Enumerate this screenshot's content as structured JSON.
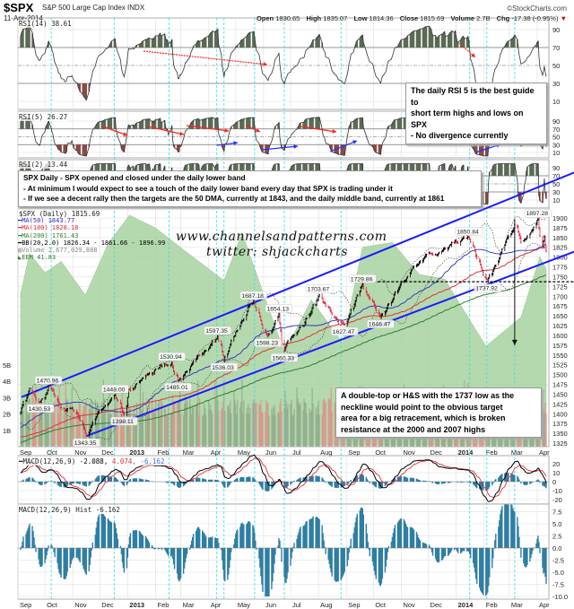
{
  "header": {
    "symbol": "$SPX",
    "name": "S&P 500 Large Cap Index",
    "exchange": "INDX",
    "date": "11-Apr-2014",
    "copyright": "©StockCharts.com",
    "open_label": "Open",
    "open": "1830.65",
    "high_label": "High",
    "high": "1835.07",
    "low_label": "Low",
    "low": "1814.36",
    "close_label": "Close",
    "close": "1815.69",
    "volume_label": "Volume",
    "volume": "2.7B",
    "chg_label": "Chg",
    "chg": "-17.38 (-0.95%)",
    "chg_icon": "down-triangle-icon"
  },
  "panels": {
    "rsi14_label": "RSI(14) 38.61",
    "rsi5_label": "RSI(5) 26.27",
    "rsi2_label": "RSI(2) 13.44",
    "price_label": "$SPX (Daily) 1815.69",
    "legend": [
      {
        "text": "MA(50) 1843.77",
        "color": "#2b2bb8"
      },
      {
        "text": "MA(100) 1828.18",
        "color": "#e0303a"
      },
      {
        "text": "MA(200) 1761.43",
        "color": "#2e7d32"
      },
      {
        "text": "BB(20,2.0) 1826.34 - 1861.66 - 1896.99",
        "color": "#000000"
      },
      {
        "text": "Volume 2,677,029,888",
        "color": "#888888"
      },
      {
        "text": "EEM 41.83",
        "color": "#2e7d32"
      }
    ],
    "macd_label": "MACD(12,26,9)",
    "macd_values": {
      "macd": "-2.088,",
      "signal": "4.074,",
      "hist": "-6.162"
    },
    "hist_label": "MACD(12,26,9) Hist -6.162"
  },
  "annotations": {
    "rsi_note": [
      "The daily RSI 5 is the best guide to",
      "short term highs and lows on SPX",
      "- No divergence currently"
    ],
    "spx_note": [
      "SPX Daily - SPX opened and closed under the daily lower band",
      "- At minimum I would expect to see a touch of the daily lower band every day that SPX is trading under it",
      "- If we see a decent rally then the targets are the 50 DMA, currently at 1843, and the daily middle band, currently at 1861"
    ],
    "pattern_note": [
      "A double-top or H&S with the 1737 low as the",
      "neckline would point to the obvious target",
      "area for a big retracement, which is broken",
      "resistance at the 2000 and 2007 highs"
    ],
    "watermark": [
      "www.channelsandpatterns.com",
      "twitter: shjackcharts"
    ]
  },
  "colors": {
    "up_candle": "#000000",
    "down_candle": "#e0203a",
    "ma50": "#2b2bb8",
    "ma100": "#e0303a",
    "ma200": "#2e7d32",
    "channel": "#1a1aff",
    "eem_fill": "#a9d3a0",
    "vol_up": "#8fa98a",
    "vol_down": "#d9928a",
    "hist": "#2f7ea3",
    "marker_line": "#33dddd",
    "rsi_high_fill": "#5a6a55",
    "rsi_low_fill": "#8a4a44"
  },
  "chart_data": {
    "type": "candlestick",
    "x_ticks": [
      "Sep",
      "Oct",
      "Nov",
      "Dec",
      "2013",
      "Feb",
      "Mar",
      "Apr",
      "May",
      "Jun",
      "Jul",
      "Aug",
      "Sep",
      "Oct",
      "Nov",
      "Dec",
      "2014",
      "Feb",
      "Mar",
      "Apr"
    ],
    "x_tick_dates": [
      "2012-09-01",
      "2012-10-01",
      "2012-11-01",
      "2012-12-01",
      "2013-01-01",
      "2013-02-01",
      "2013-03-01",
      "2013-04-01",
      "2013-05-01",
      "2013-06-01",
      "2013-07-01",
      "2013-08-01",
      "2013-09-01",
      "2013-10-01",
      "2013-11-01",
      "2013-12-01",
      "2014-01-01",
      "2014-02-01",
      "2014-03-01",
      "2014-04-01"
    ],
    "price_ticks": [
      1900,
      1875,
      1850,
      1825,
      1800,
      1775,
      1750,
      1725,
      1700,
      1675,
      1650,
      1625,
      1600,
      1575,
      1550,
      1525,
      1500,
      1475,
      1450,
      1425,
      1400,
      1375,
      1350,
      1325
    ],
    "price_range": [
      1320,
      1925
    ],
    "volume_ticks": [
      "1B",
      "2B",
      "3B",
      "4B",
      "5B"
    ],
    "rsi14_ticks": [
      90,
      70,
      50,
      30,
      10
    ],
    "rsi5_ticks": [
      90,
      70,
      50,
      30,
      10
    ],
    "rsi2_ticks": [
      90,
      70,
      50,
      30,
      10
    ],
    "macd_ticks": [
      20,
      10,
      0,
      -10,
      -20
    ],
    "hist_ticks": [
      "7.5",
      "5.0",
      "2.5",
      "0.0",
      "-2.5",
      "-5.0",
      "-7.5",
      "-10.0"
    ],
    "pivots": [
      {
        "date": "2012-09-04",
        "price": 1404
      },
      {
        "date": "2012-09-14",
        "price": 1465
      },
      {
        "date": "2012-09-26",
        "price": 1430.53,
        "label": "1430.53"
      },
      {
        "date": "2012-10-05",
        "price": 1470.96,
        "label": "1470.96"
      },
      {
        "date": "2012-10-23",
        "price": 1408
      },
      {
        "date": "2012-10-31",
        "price": 1414
      },
      {
        "date": "2012-11-16",
        "price": 1343.35,
        "label": "1343.35"
      },
      {
        "date": "2012-12-03",
        "price": 1410
      },
      {
        "date": "2012-12-18",
        "price": 1448.0,
        "label": "1448.00"
      },
      {
        "date": "2012-12-28",
        "price": 1398.11,
        "label": "1398.11"
      },
      {
        "date": "2013-01-02",
        "price": 1462
      },
      {
        "date": "2013-02-19",
        "price": 1530.94,
        "label": "1530.94"
      },
      {
        "date": "2013-02-26",
        "price": 1485.01,
        "label": "1485.01"
      },
      {
        "date": "2013-04-11",
        "price": 1597.35,
        "label": "1597.35"
      },
      {
        "date": "2013-04-18",
        "price": 1536.03,
        "label": "1536.03"
      },
      {
        "date": "2013-05-21",
        "price": 1687.18,
        "label": "1687.18"
      },
      {
        "date": "2013-06-06",
        "price": 1598.23,
        "label": "1598.23"
      },
      {
        "date": "2013-06-18",
        "price": 1654.13,
        "label": "1654.13"
      },
      {
        "date": "2013-06-24",
        "price": 1560.33,
        "label": "1560.33"
      },
      {
        "date": "2013-08-02",
        "price": 1703.67,
        "label": "1703.67"
      },
      {
        "date": "2013-08-30",
        "price": 1627.47,
        "label": "1627.47"
      },
      {
        "date": "2013-09-19",
        "price": 1729.86,
        "label": "1729.86"
      },
      {
        "date": "2013-10-09",
        "price": 1646.47,
        "label": "1646.47"
      },
      {
        "date": "2013-11-29",
        "price": 1807
      },
      {
        "date": "2014-01-15",
        "price": 1850.84,
        "label": "1850.84"
      },
      {
        "date": "2014-02-05",
        "price": 1737.92,
        "label": "1737.92"
      },
      {
        "date": "2014-03-07",
        "price": 1883
      },
      {
        "date": "2014-03-14",
        "price": 1839
      },
      {
        "date": "2014-04-02",
        "price": 1897.28,
        "label": "1897.28"
      },
      {
        "date": "2014-04-07",
        "price": 1830
      },
      {
        "date": "2014-04-09",
        "price": 1852
      },
      {
        "date": "2014-04-11",
        "price": 1815.69
      }
    ],
    "eem": [
      {
        "date": "2012-09-04",
        "value": 40.3
      },
      {
        "date": "2012-09-14",
        "value": 42.8
      },
      {
        "date": "2012-10-01",
        "value": 41.6
      },
      {
        "date": "2012-10-19",
        "value": 42.3
      },
      {
        "date": "2012-11-15",
        "value": 40.2
      },
      {
        "date": "2012-12-10",
        "value": 43.4
      },
      {
        "date": "2013-01-03",
        "value": 45.2
      },
      {
        "date": "2013-02-01",
        "value": 44.4
      },
      {
        "date": "2013-03-05",
        "value": 43.0
      },
      {
        "date": "2013-04-18",
        "value": 41.1
      },
      {
        "date": "2013-05-08",
        "value": 44.1
      },
      {
        "date": "2013-06-24",
        "value": 36.6
      },
      {
        "date": "2013-07-24",
        "value": 39.9
      },
      {
        "date": "2013-08-28",
        "value": 37.2
      },
      {
        "date": "2013-09-19",
        "value": 43.2
      },
      {
        "date": "2013-10-22",
        "value": 43.5
      },
      {
        "date": "2013-11-21",
        "value": 41.5
      },
      {
        "date": "2013-12-19",
        "value": 41.2
      },
      {
        "date": "2014-02-03",
        "value": 37.0
      },
      {
        "date": "2014-03-14",
        "value": 38.8
      },
      {
        "date": "2014-04-04",
        "value": 42.6
      },
      {
        "date": "2014-04-11",
        "value": 41.83
      }
    ],
    "channel_upper": [
      {
        "date": "2012-10-05",
        "price": 1471
      },
      {
        "date": "2014-04-11",
        "price": 1996
      }
    ],
    "channel_lower": [
      {
        "date": "2012-11-16",
        "price": 1343
      },
      {
        "date": "2014-04-11",
        "price": 1795
      }
    ],
    "neckline": {
      "price": 1737,
      "from": "2013-10-01"
    },
    "target_arrow": {
      "date": "2014-03-07",
      "from": 1897,
      "to": 1575
    },
    "marker_dates": [
      "2012-10-08",
      "2012-12-17",
      "2013-02-16",
      "2013-04-10",
      "2013-04-18",
      "2013-05-22",
      "2013-06-24",
      "2013-08-26",
      "2014-01-16",
      "2014-02-04",
      "2014-03-07"
    ]
  }
}
